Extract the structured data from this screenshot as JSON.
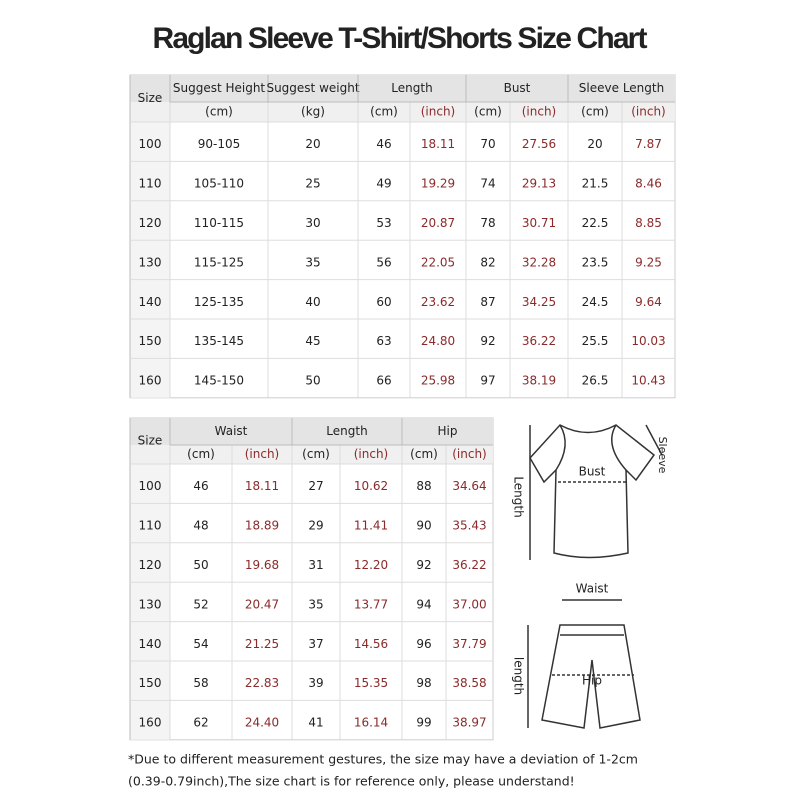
{
  "title": "Raglan Sleeve T-Shirt/Shorts Size Chart",
  "shirt_table": {
    "header1": [
      "Size",
      "Suggest Height",
      "Suggest weight",
      "Length",
      "Bust",
      "Sleeve Length"
    ],
    "header2": [
      "(cm)",
      "(kg)",
      "(cm)",
      "(inch)",
      "(cm)",
      "(inch)",
      "(cm)",
      "(inch)"
    ],
    "rows": [
      [
        "100",
        "90-105",
        "20",
        "46",
        "18.11",
        "70",
        "27.56",
        "20",
        "7.87"
      ],
      [
        "110",
        "105-110",
        "25",
        "49",
        "19.29",
        "74",
        "29.13",
        "21.5",
        "8.46"
      ],
      [
        "120",
        "110-115",
        "30",
        "53",
        "20.87",
        "78",
        "30.71",
        "22.5",
        "8.85"
      ],
      [
        "130",
        "115-125",
        "35",
        "56",
        "22.05",
        "82",
        "32.28",
        "23.5",
        "9.25"
      ],
      [
        "140",
        "125-135",
        "40",
        "60",
        "23.62",
        "87",
        "34.25",
        "24.5",
        "9.64"
      ],
      [
        "150",
        "135-145",
        "45",
        "63",
        "24.80",
        "92",
        "36.22",
        "25.5",
        "10.03"
      ],
      [
        "160",
        "145-150",
        "50",
        "66",
        "25.98",
        "97",
        "38.19",
        "26.5",
        "10.43"
      ]
    ]
  },
  "shorts_table": {
    "header1": [
      "Size",
      "Waist",
      "Length",
      "Hip"
    ],
    "header2": [
      "(cm)",
      "(inch)",
      "(cm)",
      "(inch)",
      "(cm)",
      "(inch)"
    ],
    "rows": [
      [
        "100",
        "46",
        "18.11",
        "27",
        "10.62",
        "88",
        "34.64"
      ],
      [
        "110",
        "48",
        "18.89",
        "29",
        "11.41",
        "90",
        "35.43"
      ],
      [
        "120",
        "50",
        "19.68",
        "31",
        "12.20",
        "92",
        "36.22"
      ],
      [
        "130",
        "52",
        "20.47",
        "35",
        "13.77",
        "94",
        "37.00"
      ],
      [
        "140",
        "54",
        "21.25",
        "37",
        "14.56",
        "96",
        "37.79"
      ],
      [
        "150",
        "58",
        "22.83",
        "39",
        "15.35",
        "98",
        "38.58"
      ],
      [
        "160",
        "62",
        "24.40",
        "41",
        "16.14",
        "99",
        "38.97"
      ]
    ]
  },
  "diagram_labels": {
    "bust": "Bust",
    "sleeve": "Sleeve",
    "shirt_length": "Length",
    "waist": "Waist",
    "hip": "Hip",
    "shorts_length": "length"
  },
  "footnote": [
    "*Due to different measurement gestures, the size may have a deviation of 1-2cm",
    "(0.39-0.79inch),The size chart is for reference only, please understand!"
  ]
}
